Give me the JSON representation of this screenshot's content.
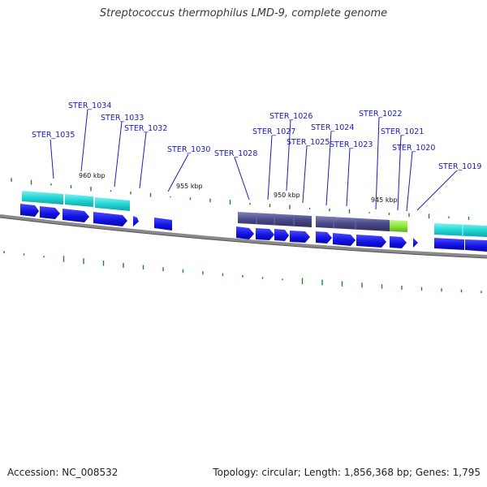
{
  "title": "Streptococcus thermophilus LMD-9, complete genome",
  "footer": {
    "accession": "Accession: NC_008532",
    "topology": "Topology: circular; Length: 1,856,368 bp; Genes: 1,795"
  },
  "kbp_labels": [
    "960 kbp",
    "955 kbp",
    "950 kbp",
    "945 kbp"
  ],
  "gene_labels": [
    "STER_1035",
    "STER_1034",
    "STER_1033",
    "STER_1032",
    "STER_1030",
    "STER_1028",
    "STER_1027",
    "STER_1026",
    "STER_1025",
    "STER_1024",
    "STER_1023",
    "STER_1022",
    "STER_1021",
    "STER_1020",
    "STER_1019"
  ],
  "colors": {
    "backbone": "#7a7a7a",
    "cds_arrow": "#1010e0",
    "cog_cyan": "#2ad8d8",
    "cog_slate": "#4a4a8a",
    "cog_green": "#8ae83a",
    "gc_tick": "#1a8a1a",
    "label": "#1a1ab8"
  }
}
